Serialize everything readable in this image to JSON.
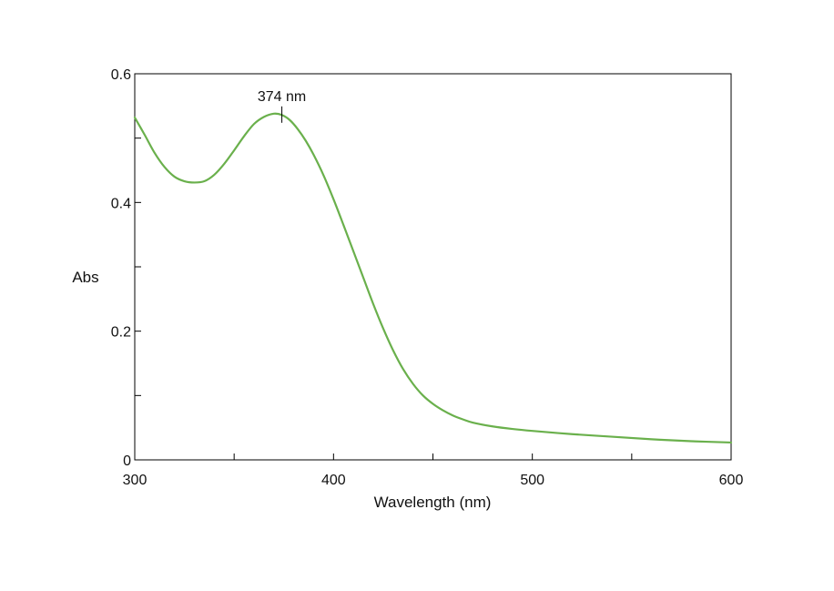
{
  "chart_data": {
    "type": "line",
    "title": "",
    "xlabel": "Wavelength (nm)",
    "ylabel": "Abs",
    "xlim": [
      300,
      600
    ],
    "ylim": [
      0,
      0.6
    ],
    "x_ticks": [
      300,
      400,
      500,
      600
    ],
    "x_tick_labels": [
      "300",
      "400",
      "500",
      "600"
    ],
    "x_minor_ticks": [
      350,
      450,
      550
    ],
    "y_ticks": [
      0,
      0.2,
      0.4,
      0.6
    ],
    "y_tick_labels": [
      "0",
      "0.2",
      "0.4",
      "0.6"
    ],
    "y_minor_ticks": [
      0.1,
      0.3,
      0.5
    ],
    "grid": false,
    "legend": "none",
    "line_color": "#6ab04c",
    "series": [
      {
        "x": [
          300,
          305,
          310,
          315,
          320,
          325,
          330,
          335,
          340,
          345,
          350,
          355,
          360,
          365,
          370,
          374,
          378,
          382,
          386,
          390,
          395,
          400,
          405,
          410,
          415,
          420,
          425,
          430,
          435,
          440,
          445,
          450,
          455,
          460,
          465,
          470,
          480,
          490,
          500,
          520,
          540,
          560,
          580,
          600
        ],
        "y": [
          0.532,
          0.505,
          0.477,
          0.455,
          0.44,
          0.433,
          0.431,
          0.433,
          0.443,
          0.46,
          0.481,
          0.503,
          0.522,
          0.533,
          0.538,
          0.536,
          0.528,
          0.514,
          0.496,
          0.474,
          0.442,
          0.405,
          0.365,
          0.324,
          0.283,
          0.242,
          0.204,
          0.17,
          0.141,
          0.118,
          0.1,
          0.087,
          0.077,
          0.069,
          0.063,
          0.058,
          0.052,
          0.048,
          0.045,
          0.04,
          0.036,
          0.032,
          0.029,
          0.027
        ]
      }
    ],
    "annotations": [
      {
        "text": "374 nm",
        "x": 374,
        "y": 0.538
      }
    ]
  }
}
